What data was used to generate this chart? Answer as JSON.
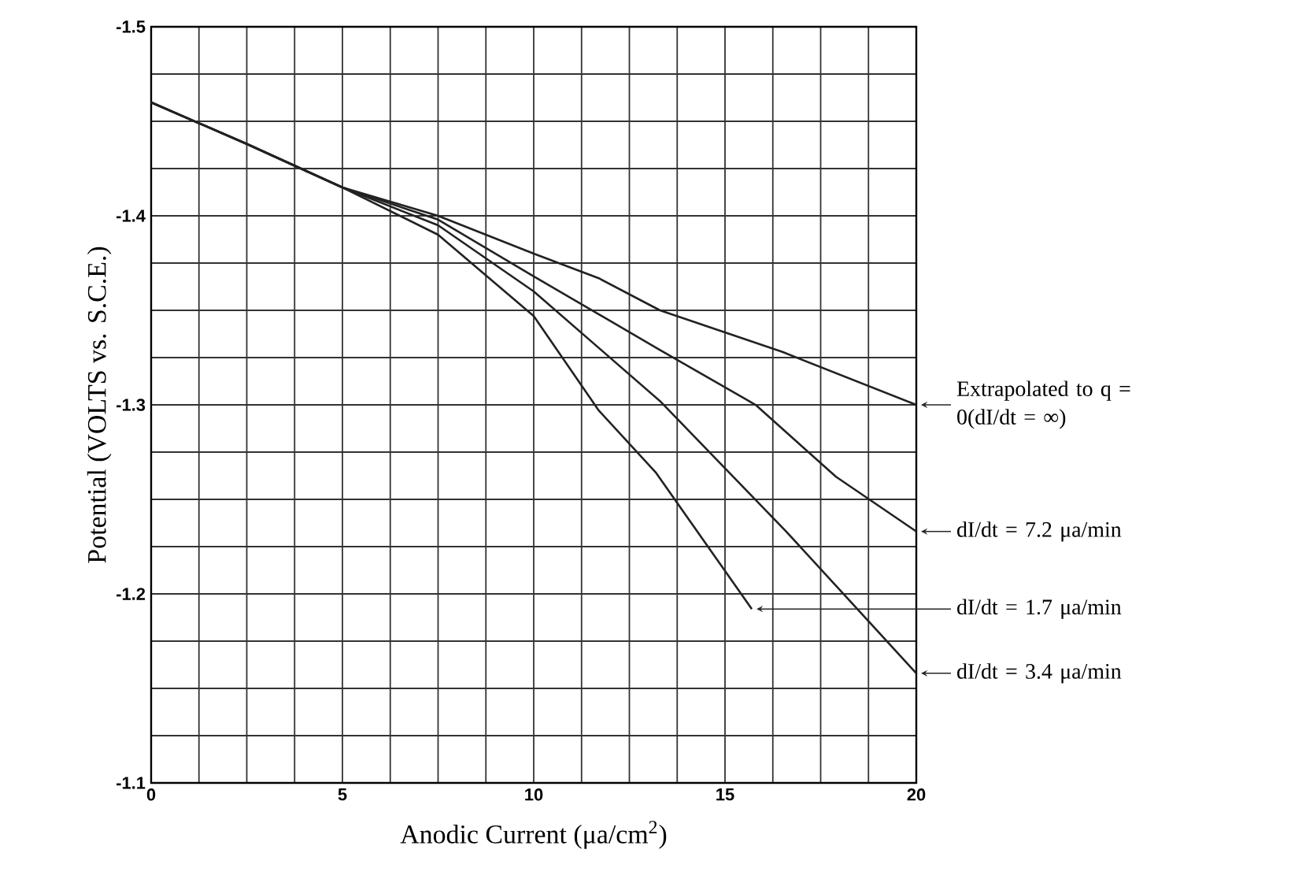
{
  "chart_data": {
    "type": "line",
    "xlabel": "Anodic Current (μa/cm$^{2}$)",
    "ylabel": "Potential (VOLTS vs. S.C.E.)",
    "xlim": [
      0,
      20
    ],
    "ylim": [
      -1.1,
      -1.5
    ],
    "xticks": [
      0,
      {
        "value": 1.25,
        "label": null
      },
      {
        "value": 2.5,
        "label": null
      },
      {
        "value": 3.75,
        "label": null
      },
      5,
      {
        "value": 6.25,
        "label": null
      },
      {
        "value": 7.5,
        "label": null
      },
      {
        "value": 8.75,
        "label": null
      },
      10,
      {
        "value": 11.25,
        "label": null
      },
      {
        "value": 12.5,
        "label": null
      },
      {
        "value": 13.75,
        "label": null
      },
      15,
      {
        "value": 16.25,
        "label": null
      },
      {
        "value": 17.5,
        "label": null
      },
      {
        "value": 18.75,
        "label": null
      },
      20
    ],
    "yticks": [
      -1.5,
      {
        "value": -1.475,
        "label": null
      },
      {
        "value": -1.45,
        "label": null
      },
      {
        "value": -1.425,
        "label": null
      },
      -1.4,
      {
        "value": -1.375,
        "label": null
      },
      {
        "value": -1.35,
        "label": null
      },
      {
        "value": -1.325,
        "label": null
      },
      -1.3,
      {
        "value": -1.275,
        "label": null
      },
      {
        "value": -1.25,
        "label": null
      },
      {
        "value": -1.225,
        "label": null
      },
      -1.2,
      {
        "value": -1.175,
        "label": null
      },
      {
        "value": -1.15,
        "label": null
      },
      {
        "value": -1.125,
        "label": null
      },
      -1.1
    ],
    "grid": true,
    "legend": "right",
    "marker": "none",
    "line_style": "solid",
    "series": [
      {
        "name": "Extrapolated to q = 0(dI/dt = ∞)",
        "color": "#222222",
        "x": [
          0,
          2.5,
          5,
          7.5,
          10,
          11.7,
          13.3,
          16.5,
          20
        ],
        "values": [
          -1.46,
          -1.438,
          -1.415,
          -1.4,
          -1.38,
          -1.367,
          -1.35,
          -1.328,
          -1.3
        ]
      },
      {
        "name": "dI/dt = 7.2 μa/min",
        "color": "#222222",
        "x": [
          0,
          2.5,
          5,
          7.5,
          10,
          13.3,
          15.8,
          17.9,
          20
        ],
        "values": [
          -1.46,
          -1.438,
          -1.415,
          -1.398,
          -1.368,
          -1.329,
          -1.3,
          -1.262,
          -1.233
        ]
      },
      {
        "name": "dI/dt = 3.4 μa/min",
        "color": "#222222",
        "x": [
          0,
          2.5,
          5,
          7.5,
          10,
          13.3,
          16.6,
          20
        ],
        "values": [
          -1.46,
          -1.438,
          -1.415,
          -1.395,
          -1.36,
          -1.302,
          -1.233,
          -1.158
        ]
      },
      {
        "name": "dI/dt = 1.7 μa/min",
        "color": "#222222",
        "x": [
          0,
          2.5,
          5,
          7.5,
          10,
          11.7,
          13.2,
          15.7
        ],
        "values": [
          -1.46,
          -1.438,
          -1.415,
          -1.39,
          -1.347,
          -1.297,
          -1.264,
          -1.192
        ]
      }
    ]
  }
}
